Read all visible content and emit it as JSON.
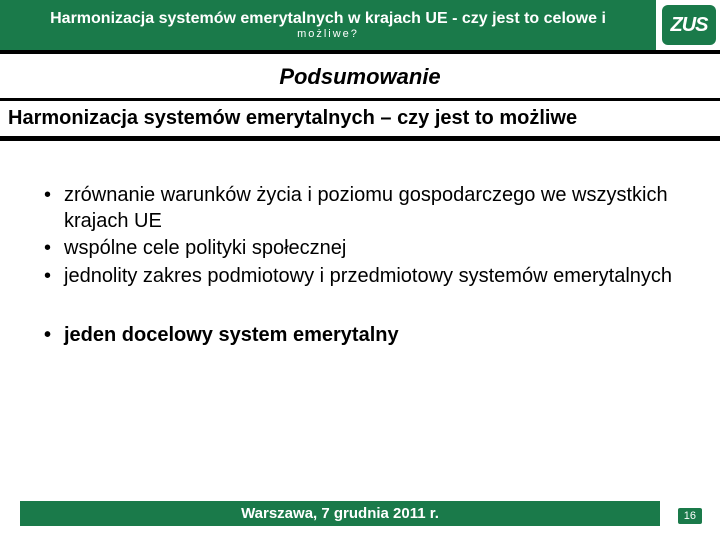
{
  "colors": {
    "brand_green": "#1a7a4a",
    "black": "#000000",
    "white": "#ffffff"
  },
  "header": {
    "title": "Harmonizacja systemów emerytalnych w krajach UE - czy jest to celowe i",
    "subline": "możliwe?",
    "logo_text": "ZUS"
  },
  "section_title": "Podsumowanie",
  "subheading": "Harmonizacja systemów emerytalnych – czy jest to możliwe",
  "bullets": {
    "b1": "zrównanie warunków życia i poziomu gospodarczego we wszystkich krajach UE",
    "b2": "wspólne cele polityki społecznej",
    "b3": "jednolity zakres podmiotowy i przedmiotowy systemów emerytalnych",
    "b4": "jeden docelowy system emerytalny"
  },
  "footer": {
    "text": "Warszawa, 7 grudnia 2011 r.",
    "page": "16"
  }
}
